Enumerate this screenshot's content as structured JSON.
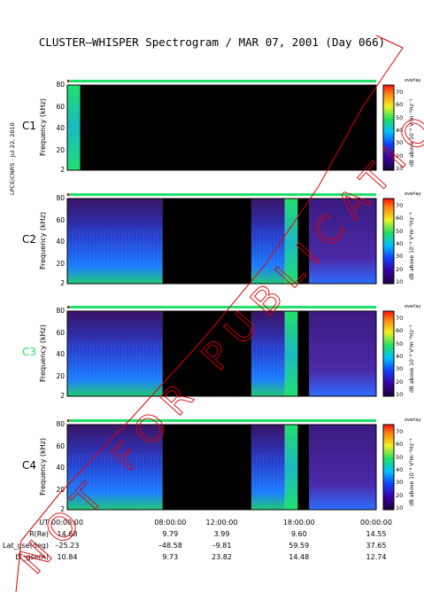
{
  "title": "CLUSTER–WHISPER Spectrogram / MAR 07, 2001 (Day 066)",
  "sidenote": "LPCE/CNRS - Jul 22, 2010",
  "ylabel": "Frequency (kHz)",
  "yticks": [
    "2",
    "20",
    "40",
    "60",
    "80"
  ],
  "colorbar": {
    "title": "overlay",
    "label": "dB above 10⁻⁸ V²m⁻²Hz⁻¹",
    "ticks": [
      "10",
      "20",
      "30",
      "40",
      "50",
      "60",
      "70"
    ]
  },
  "watermark": "NOT FOR PUBLICATION",
  "colors": {
    "background_dark": "#000000",
    "spectrum_low": "#2a0a5e",
    "spectrum_mid": "#1e5aff",
    "spectrum_high": "#21e06b",
    "watermark": "#e00000",
    "status_good": "#21e06b",
    "status_gap": "#e00000"
  },
  "chart_data": [
    {
      "type": "heatmap",
      "panel": "C1",
      "ylim": [
        2,
        80
      ],
      "xlim": [
        "00:00:00",
        "00:00:00"
      ],
      "segments": [
        {
          "start_h": 0.0,
          "end_h": 1.0,
          "intensity": "high",
          "note": "broadband emission up to 80 kHz"
        },
        {
          "start_h": 1.0,
          "end_h": 24.0,
          "intensity": "none",
          "note": "no data"
        }
      ],
      "label_color": "#000000"
    },
    {
      "type": "heatmap",
      "panel": "C2",
      "ylim": [
        2,
        80
      ],
      "segments": [
        {
          "start_h": 0.0,
          "end_h": 7.4,
          "intensity": "medium"
        },
        {
          "start_h": 7.4,
          "end_h": 14.3,
          "intensity": "none"
        },
        {
          "start_h": 14.3,
          "end_h": 16.9,
          "intensity": "medium"
        },
        {
          "start_h": 16.9,
          "end_h": 17.9,
          "intensity": "high"
        },
        {
          "start_h": 17.9,
          "end_h": 18.8,
          "intensity": "none"
        },
        {
          "start_h": 18.8,
          "end_h": 24.0,
          "intensity": "low"
        }
      ],
      "label_color": "#000000"
    },
    {
      "type": "heatmap",
      "panel": "C3",
      "ylim": [
        2,
        80
      ],
      "segments": [
        {
          "start_h": 0.0,
          "end_h": 7.4,
          "intensity": "medium"
        },
        {
          "start_h": 7.4,
          "end_h": 14.3,
          "intensity": "none"
        },
        {
          "start_h": 14.3,
          "end_h": 16.9,
          "intensity": "medium"
        },
        {
          "start_h": 16.9,
          "end_h": 17.9,
          "intensity": "high"
        },
        {
          "start_h": 17.9,
          "end_h": 18.8,
          "intensity": "none"
        },
        {
          "start_h": 18.8,
          "end_h": 24.0,
          "intensity": "low"
        }
      ],
      "label_color": "#21e06b"
    },
    {
      "type": "heatmap",
      "panel": "C4",
      "ylim": [
        2,
        80
      ],
      "segments": [
        {
          "start_h": 0.0,
          "end_h": 7.4,
          "intensity": "medium"
        },
        {
          "start_h": 7.4,
          "end_h": 14.3,
          "intensity": "none"
        },
        {
          "start_h": 14.3,
          "end_h": 16.9,
          "intensity": "medium"
        },
        {
          "start_h": 16.9,
          "end_h": 17.9,
          "intensity": "high"
        },
        {
          "start_h": 17.9,
          "end_h": 18.8,
          "intensity": "none"
        },
        {
          "start_h": 18.8,
          "end_h": 24.0,
          "intensity": "low"
        }
      ],
      "label_color": "#000000"
    }
  ],
  "time_table": {
    "row_labels": [
      "UT",
      "R(Re)",
      "Lat_gse(deg)",
      "LT_gse(h)"
    ],
    "columns": [
      [
        "00:00:00",
        "14.68",
        "–25.23",
        "10.84"
      ],
      [
        "08:00:00",
        "9.79",
        "–48.58",
        "9.73"
      ],
      [
        "12:00:00",
        "3.99",
        "–9.81",
        "23.82"
      ],
      [
        "18:00:00",
        "9.60",
        "59.59",
        "14.48"
      ],
      [
        "00:00:00",
        "14.55",
        "37.65",
        "12.74"
      ]
    ]
  }
}
